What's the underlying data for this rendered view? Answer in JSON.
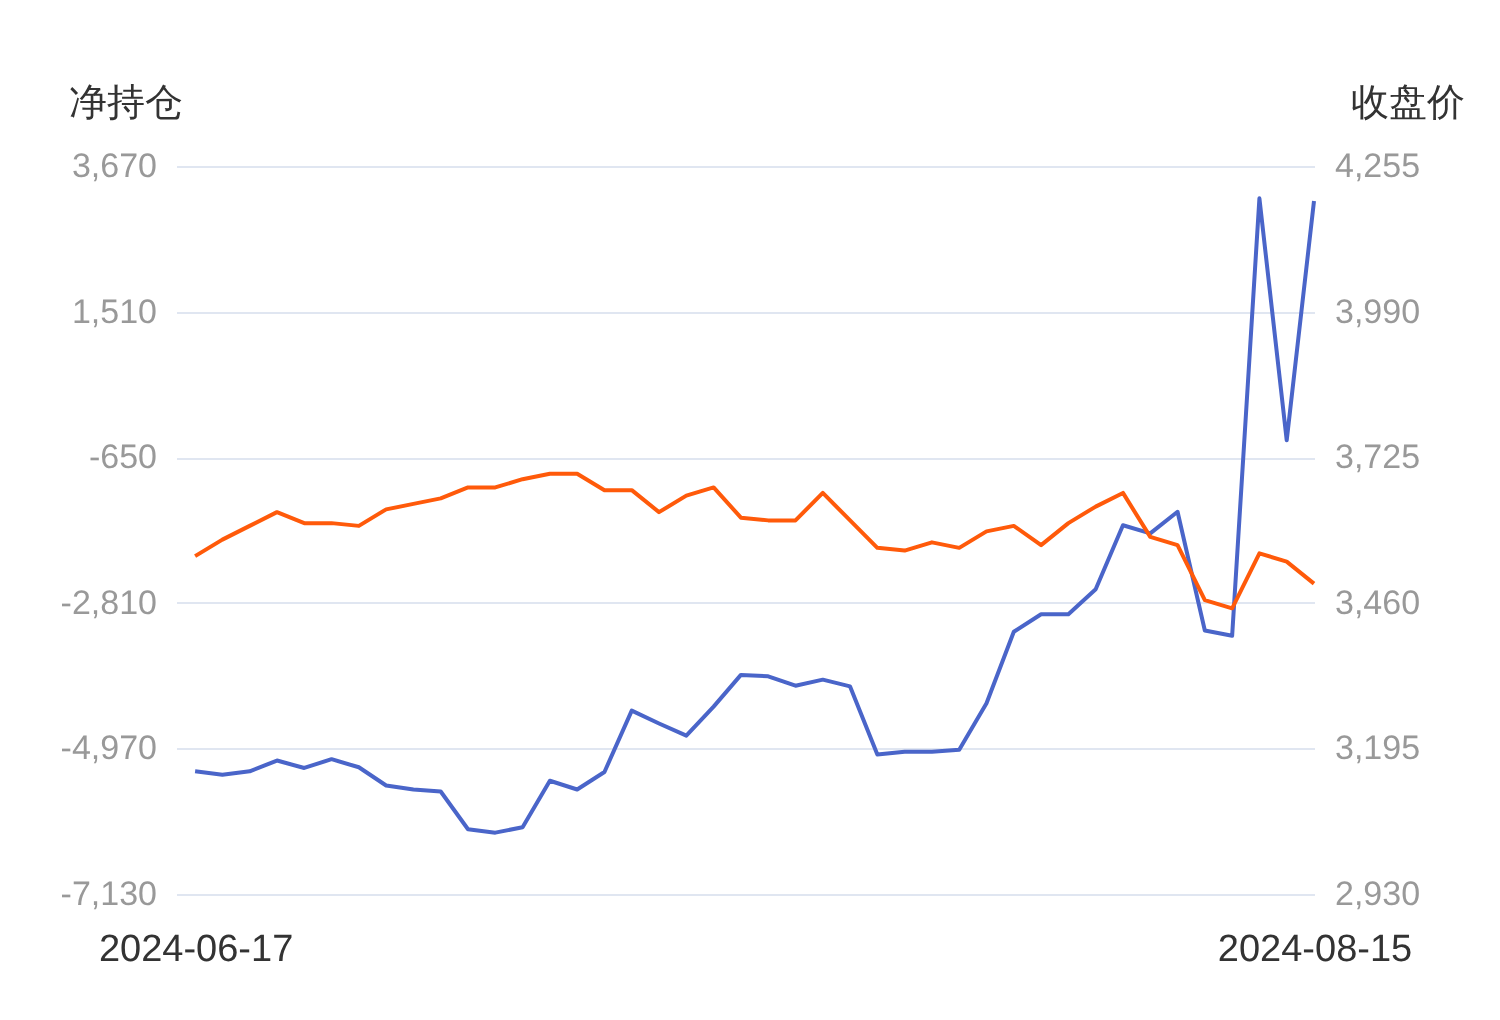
{
  "chart_data": {
    "type": "line",
    "ylabel": "净持仓",
    "y2label": "收盘价",
    "categories": [
      "2024-06-17",
      null,
      null,
      null,
      null,
      null,
      null,
      null,
      null,
      null,
      null,
      null,
      null,
      null,
      null,
      null,
      null,
      null,
      null,
      null,
      null,
      null,
      null,
      null,
      null,
      null,
      null,
      null,
      null,
      null,
      null,
      null,
      null,
      null,
      null,
      null,
      null,
      null,
      null,
      null,
      null,
      "2024-08-15"
    ],
    "ylim": [
      -7130,
      3670
    ],
    "yticks": [
      {
        "value": -7130,
        "label": "-7,130"
      },
      {
        "value": -4970,
        "label": "-4,970"
      },
      {
        "value": -2810,
        "label": "-2,810"
      },
      {
        "value": -650,
        "label": "-650"
      },
      {
        "value": 1510,
        "label": "1,510"
      },
      {
        "value": 3670,
        "label": "3,670"
      }
    ],
    "y2lim": [
      2930,
      4255
    ],
    "y2ticks": [
      {
        "value": 2930,
        "label": "2,930"
      },
      {
        "value": 3195,
        "label": "3,195"
      },
      {
        "value": 3460,
        "label": "3,460"
      },
      {
        "value": 3725,
        "label": "3,725"
      },
      {
        "value": 3990,
        "label": "3,990"
      },
      {
        "value": 4255,
        "label": "4,255"
      }
    ],
    "grid": "y",
    "line_style": "solid",
    "marker": "none",
    "series": [
      {
        "color": "#4a65c9",
        "values": [
          -5310,
          -5360,
          -5310,
          -5150,
          -5260,
          -5130,
          -5250,
          -5520,
          -5580,
          -5610,
          -6170,
          -6220,
          -6140,
          -5450,
          -5580,
          -5320,
          -4410,
          -4600,
          -4780,
          -4350,
          -3880,
          -3900,
          -4040,
          -3950,
          -4050,
          -5060,
          -5020,
          -5020,
          -4990,
          -4300,
          -3240,
          -2980,
          -2980,
          -2610,
          -1660,
          -1780,
          -1460,
          -3220,
          -3300,
          3190,
          -400,
          3150
        ]
      },
      {
        "color": "#ff5a0a",
        "axis": "y2",
        "values": [
          3545,
          3575,
          3600,
          3625,
          3605,
          3605,
          3600,
          3630,
          3640,
          3650,
          3670,
          3670,
          3685,
          3695,
          3695,
          3665,
          3665,
          3625,
          3655,
          3670,
          3615,
          3610,
          3610,
          3660,
          3610,
          3560,
          3555,
          3570,
          3560,
          3590,
          3600,
          3565,
          3605,
          3635,
          3660,
          3580,
          3565,
          3465,
          3450,
          3550,
          3535,
          3495
        ]
      }
    ]
  }
}
